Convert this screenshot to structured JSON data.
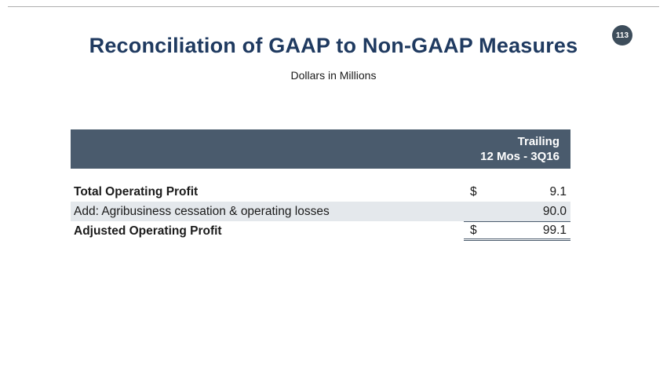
{
  "slide": {
    "page_number": "113",
    "title": "Reconciliation of GAAP to Non-GAAP Measures",
    "subtitle": "Dollars in Millions"
  },
  "table": {
    "header_line1": "Trailing",
    "header_line2": "12 Mos - 3Q16",
    "rows": [
      {
        "label": "Total Operating Profit",
        "currency": "$",
        "value": "9.1"
      },
      {
        "label": "Add: Agribusiness cessation & operating losses",
        "currency": "",
        "value": "90.0"
      },
      {
        "label": "Adjusted Operating Profit",
        "currency": "$",
        "value": "99.1"
      }
    ]
  },
  "colors": {
    "title_text": "#1f3a60",
    "table_header_bg": "#4a5b6d",
    "shaded_row_bg": "#e4e8ec",
    "badge_bg": "#3d4d5b"
  }
}
